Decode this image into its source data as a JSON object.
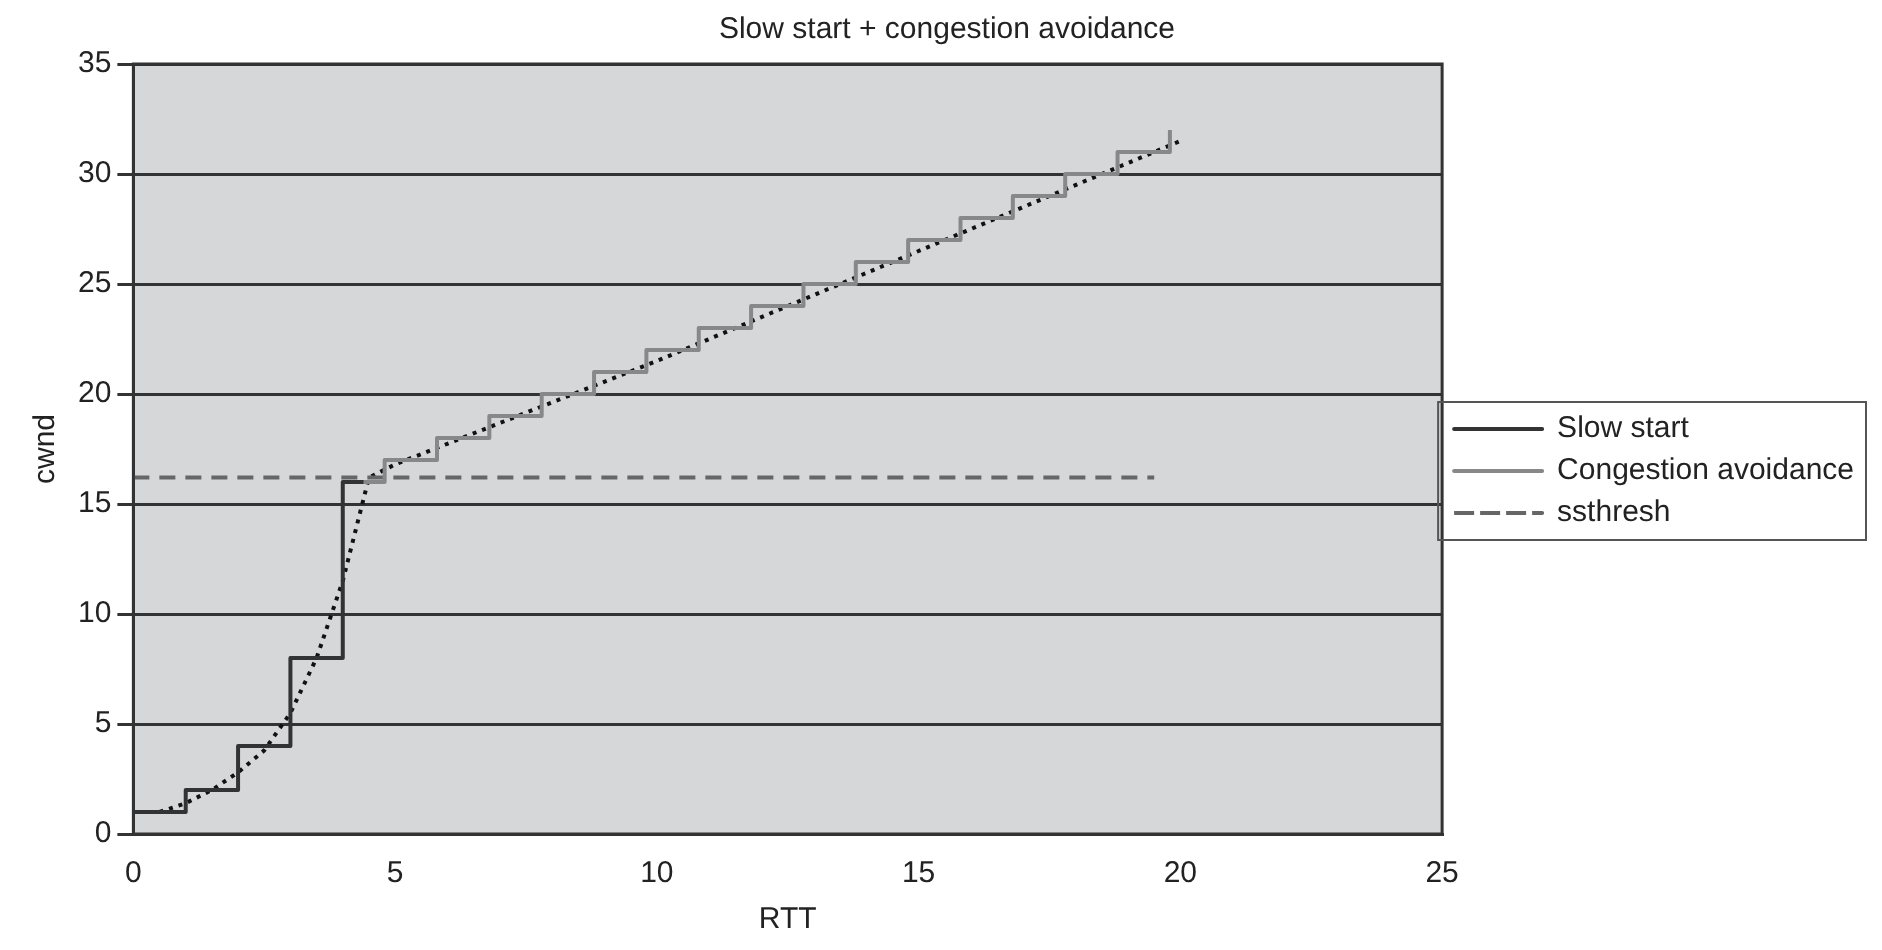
{
  "chart_data": {
    "type": "step",
    "title": "Slow start + congestion avoidance",
    "xlabel": "RTT",
    "ylabel": "cwnd",
    "xlim": [
      0,
      25
    ],
    "xticks": [
      0,
      5,
      10,
      15,
      20,
      25
    ],
    "ylim": [
      0,
      35
    ],
    "yticks": [
      0,
      5,
      10,
      15,
      20,
      25,
      30,
      35
    ],
    "grid": "y",
    "legend": "right",
    "marker": "none",
    "series": [
      {
        "name": "Slow start",
        "color": "#333333",
        "x": [
          0,
          1,
          2,
          3,
          4,
          4.4
        ],
        "values": [
          1,
          2,
          4,
          8,
          16,
          16
        ]
      },
      {
        "name": "Congestion avoidance",
        "color": "#888888",
        "x": [
          4.4,
          4.8,
          5.8,
          6.8,
          7.8,
          8.8,
          9.8,
          10.8,
          11.8,
          12.8,
          13.8,
          14.8,
          15.8,
          16.8,
          17.8,
          18.8,
          19.8
        ],
        "values": [
          16,
          17,
          18,
          19,
          20,
          21,
          22,
          23,
          24,
          25,
          26,
          27,
          28,
          29,
          30,
          31,
          32
        ]
      },
      {
        "name": "ssthresh",
        "type": "line",
        "line_style": "dashed",
        "color": "#666666",
        "x": [
          0,
          19.5
        ],
        "values": [
          16.2,
          16.2
        ]
      },
      {
        "type": "line",
        "line_style": "dotted",
        "color": "#111111",
        "x": [
          0.5,
          1,
          1.5,
          2,
          2.5,
          3,
          3.5,
          4,
          4.5,
          5,
          10,
          15,
          19,
          20
        ],
        "values": [
          1,
          1.4,
          2,
          2.8,
          3.8,
          5.5,
          8,
          11.5,
          16.2,
          16.8,
          21.5,
          26.5,
          30.5,
          31.5
        ]
      }
    ]
  }
}
